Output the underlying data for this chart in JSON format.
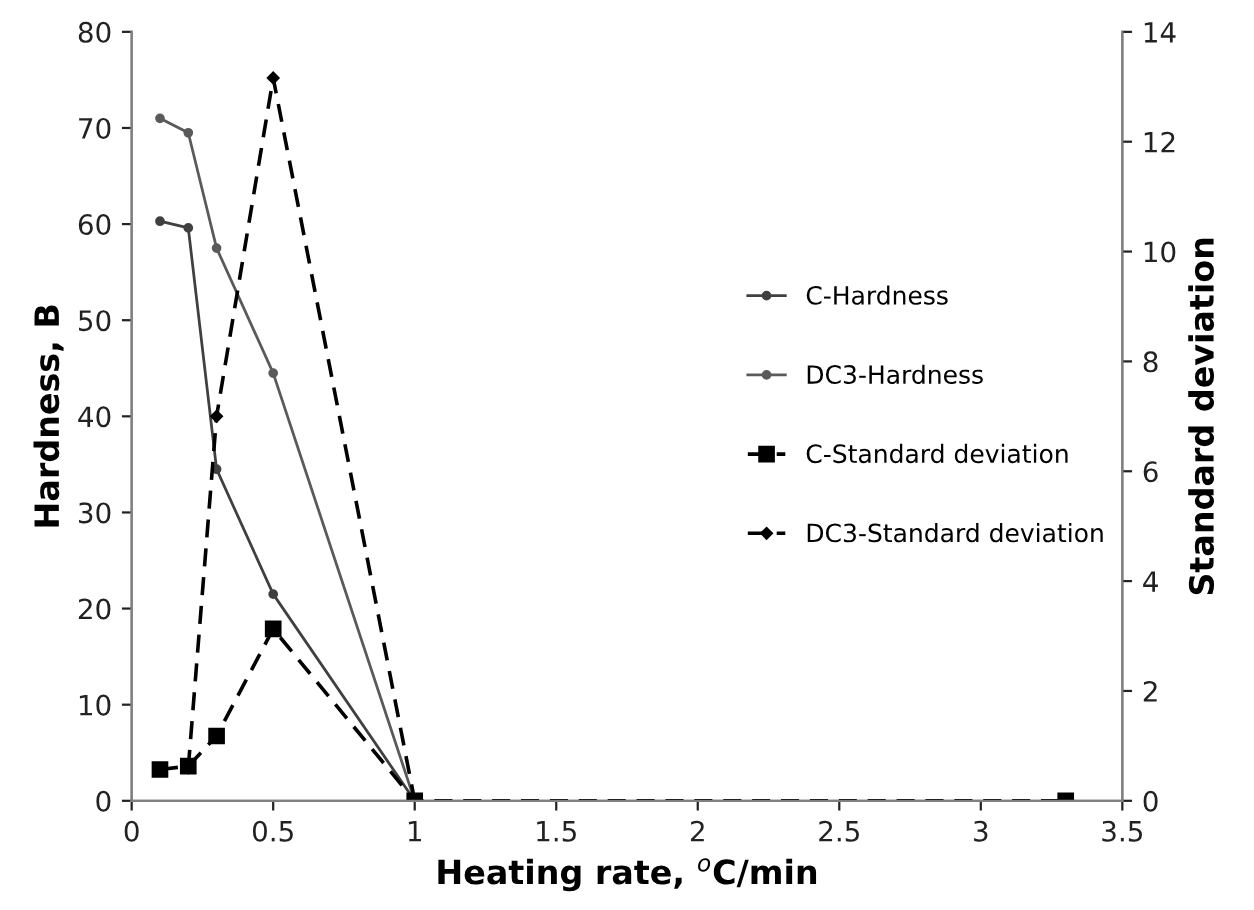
{
  "chart_data": {
    "type": "line",
    "xlabel": "Heating rate, $^{o}$C/min",
    "ylabel": "Hardness, B",
    "y2label": "Standard deviation",
    "xlim": [
      0,
      3.5
    ],
    "xticks": [
      0,
      0.5,
      1,
      1.5,
      2,
      2.5,
      3,
      3.5
    ],
    "ylim": [
      0,
      80
    ],
    "yticks": [
      0,
      10,
      20,
      30,
      40,
      50,
      60,
      70,
      80
    ],
    "y2lim": [
      0,
      14
    ],
    "y2ticks": [
      0,
      2,
      4,
      6,
      8,
      10,
      12,
      14
    ],
    "grid": false,
    "legend": "right",
    "series": [
      {
        "name": "C-Hardness",
        "color": "#404040",
        "x": [
          0.1,
          0.2,
          0.3,
          0.5,
          1
        ],
        "values": [
          60.3,
          59.6,
          34.5,
          21.5,
          0
        ],
        "marker": "circle",
        "line_style": "solid"
      },
      {
        "name": "DC3-Hardness",
        "color": "#5a5a5a",
        "x": [
          0.1,
          0.2,
          0.3,
          0.5,
          1
        ],
        "values": [
          71,
          69.5,
          57.5,
          44.5,
          0
        ],
        "marker": "circle",
        "line_style": "solid"
      },
      {
        "name": "C-Standard deviation",
        "color": "#000000",
        "axis": "y2",
        "x": [
          0.1,
          0.2,
          0.3,
          0.5,
          1,
          3.3
        ],
        "values": [
          0.57,
          0.63,
          1.18,
          3.13,
          0,
          0
        ],
        "marker": "square",
        "line_style": "dashed"
      },
      {
        "name": "DC3-Standard deviation",
        "color": "#000000",
        "axis": "y2",
        "x": [
          0.2,
          0.3,
          0.5,
          1
        ],
        "values": [
          0.6,
          7.0,
          13.16,
          0
        ],
        "marker": "diamond",
        "line_style": "dashed"
      }
    ]
  }
}
